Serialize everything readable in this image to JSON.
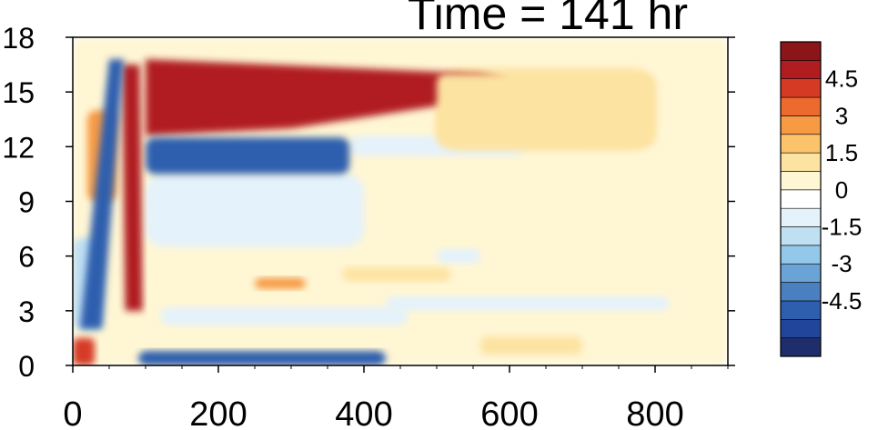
{
  "chart_data": {
    "type": "heatmap",
    "title": "Time = 141 hr",
    "xlabel": "",
    "ylabel": "",
    "xlim": [
      0,
      900
    ],
    "ylim": [
      0,
      18
    ],
    "x_ticks": [
      0,
      200,
      400,
      600,
      800
    ],
    "y_ticks": [
      0,
      3,
      6,
      9,
      12,
      15,
      18
    ],
    "colorbar": {
      "levels": [
        -5.25,
        -4.5,
        -3.75,
        -3,
        -2.25,
        -1.5,
        -0.75,
        0,
        0.75,
        1.5,
        2.25,
        3,
        3.75,
        4.5,
        5.25
      ],
      "labels": [
        "4.5",
        "3",
        "1.5",
        "0",
        "-1.5",
        "-3",
        "-4.5"
      ],
      "colors": [
        "#1f2d6b",
        "#21459a",
        "#2e5fae",
        "#4a80c0",
        "#6aa3d6",
        "#94c8ea",
        "#bfdff3",
        "#e4f2fb",
        "#ffffff",
        "#fff6d4",
        "#fde3a2",
        "#fbc46a",
        "#f69a44",
        "#ec6a2e",
        "#d53a25",
        "#b01c20",
        "#8b1518"
      ]
    },
    "features": [
      {
        "name": "upper positive band",
        "x": [
          100,
          620
        ],
        "y": [
          13.5,
          16.5
        ],
        "value": 5.2
      },
      {
        "name": "negative band",
        "x": [
          100,
          380
        ],
        "y": [
          10.5,
          12.5
        ],
        "value": -5.0
      },
      {
        "name": "bottom negative band",
        "x": [
          90,
          430
        ],
        "y": [
          0,
          0.8
        ],
        "value": -5.0
      },
      {
        "name": "diagonal positive streak",
        "x": [
          60,
          100
        ],
        "y": [
          3,
          16
        ],
        "value": 5.0
      },
      {
        "name": "diagonal negative streak",
        "x": [
          40,
          80
        ],
        "y": [
          2,
          16
        ],
        "value": -4.5
      },
      {
        "name": "right positive tail",
        "x": [
          500,
          800
        ],
        "y": [
          12,
          16
        ],
        "value": 1.2
      }
    ]
  }
}
